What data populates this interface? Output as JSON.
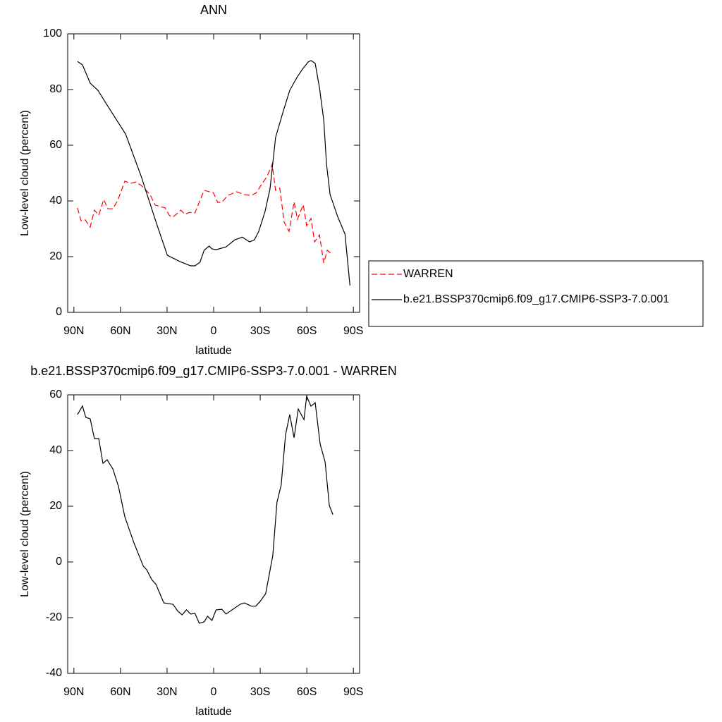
{
  "chart_data": [
    {
      "type": "line",
      "title": "ANN",
      "xlabel": "latitude",
      "ylabel": "Low-level cloud (percent)",
      "xlim": [
        94,
        -94
      ],
      "ylim": [
        0,
        100
      ],
      "xticks": [
        {
          "value": 90,
          "label": "90N"
        },
        {
          "value": 60,
          "label": "60N"
        },
        {
          "value": 30,
          "label": "30N"
        },
        0,
        {
          "value": -30,
          "label": "30S"
        },
        {
          "value": -60,
          "label": "60S"
        },
        {
          "value": -90,
          "label": "90S"
        }
      ],
      "yticks": [
        0,
        20,
        40,
        60,
        80,
        100
      ],
      "legend": "right",
      "series": [
        {
          "name": "WARREN",
          "color": "#ff0000",
          "line_style": "dashed",
          "x": [
            87.7,
            85.4,
            82.7,
            79.5,
            76.8,
            74.0,
            70.8,
            68.1,
            64.9,
            61.7,
            57.2,
            53.5,
            50.3,
            46.7,
            41.2,
            37.6,
            31.2,
            28.4,
            25.7,
            21.2,
            18.4,
            15.7,
            12.0,
            8.4,
            6.1,
            2.9,
            0.2,
            -2.6,
            -5.3,
            -9.0,
            -14.9,
            -19.4,
            -24.0,
            -27.2,
            -30.8,
            -34.5,
            -37.7,
            -39.9,
            -42.6,
            -45.4,
            -48.6,
            -51.8,
            -54.0,
            -57.7,
            -59.9,
            -62.7,
            -65.0,
            -68.2,
            -70.9,
            -73.2,
            -76.4
          ],
          "values": [
            37.5,
            32.9,
            33.2,
            30.6,
            36.7,
            34.9,
            40.5,
            37.2,
            37.2,
            40.3,
            47.1,
            46.3,
            46.8,
            45.6,
            42.5,
            38.5,
            37.5,
            34.7,
            34.4,
            36.7,
            35.2,
            35.9,
            35.7,
            40.8,
            43.8,
            43.3,
            43.0,
            39.5,
            39.5,
            42.0,
            43.3,
            42.3,
            42.0,
            42.8,
            45.8,
            48.9,
            53.2,
            43.8,
            44.6,
            32.4,
            29.1,
            39.7,
            33.4,
            38.7,
            31.1,
            33.7,
            25.3,
            27.8,
            17.7,
            22.3,
            20.8
          ]
        },
        {
          "name": "b.e21.BSSP370cmip6.f09_g17.CMIP6-SSP3-7.0.001",
          "color": "#000000",
          "line_style": "solid",
          "x": [
            87.7,
            84.5,
            79.5,
            74.5,
            69.5,
            56.7,
            46.7,
            36.6,
            29.8,
            21.6,
            14.8,
            12.0,
            8.8,
            6.1,
            2.9,
            1.1,
            -1.6,
            -8.0,
            -13.5,
            -18.5,
            -23.1,
            -26.2,
            -29.0,
            -33.1,
            -36.3,
            -39.9,
            -44.5,
            -49.0,
            -53.6,
            -57.2,
            -60.9,
            -62.7,
            -65.4,
            -68.2,
            -70.9,
            -72.7,
            -75.0,
            -80.0,
            -84.6,
            -87.8
          ],
          "values": [
            90.1,
            88.9,
            82.3,
            79.7,
            75.2,
            64.0,
            48.9,
            31.6,
            20.5,
            18.2,
            16.7,
            16.7,
            18.0,
            22.3,
            23.8,
            22.8,
            22.5,
            23.5,
            26.0,
            27.0,
            25.3,
            26.0,
            29.0,
            36.2,
            44.3,
            62.8,
            71.6,
            79.7,
            84.3,
            87.3,
            89.9,
            90.4,
            89.4,
            80.5,
            69.1,
            53.2,
            42.3,
            34.2,
            28.1,
            9.6
          ]
        }
      ]
    },
    {
      "type": "line",
      "title": "b.e21.BSSP370cmip6.f09_g17.CMIP6-SSP3-7.0.001 - WARREN",
      "xlabel": "latitude",
      "ylabel": "Low-level cloud (percent)",
      "xlim": [
        94,
        -94
      ],
      "ylim": [
        -40,
        60
      ],
      "xticks": [
        {
          "value": 90,
          "label": "90N"
        },
        {
          "value": 60,
          "label": "60N"
        },
        {
          "value": 30,
          "label": "30N"
        },
        0,
        {
          "value": -30,
          "label": "30S"
        },
        {
          "value": -60,
          "label": "60S"
        },
        {
          "value": -90,
          "label": "90S"
        }
      ],
      "yticks": [
        -40,
        -20,
        0,
        20,
        40,
        60
      ],
      "color": "#000000",
      "x": [
        87.7,
        84.5,
        82.3,
        79.5,
        76.8,
        74.0,
        71.3,
        68.6,
        64.9,
        61.3,
        57.2,
        51.3,
        45.3,
        43.1,
        39.9,
        37.1,
        32.1,
        26.2,
        23.0,
        20.3,
        17.5,
        14.8,
        12.0,
        9.3,
        6.1,
        3.9,
        1.1,
        -1.6,
        -5.3,
        -8.0,
        -17.1,
        -19.8,
        -24.4,
        -27.1,
        -29.9,
        -33.5,
        -38.1,
        -40.8,
        -43.5,
        -46.3,
        -49.0,
        -51.8,
        -54.5,
        -58.2,
        -59.9,
        -62.7,
        -65.4,
        -68.6,
        -71.8,
        -74.5,
        -76.8
      ],
      "values": [
        52.9,
        56.0,
        51.9,
        51.4,
        44.3,
        44.3,
        35.4,
        36.7,
        33.4,
        27.1,
        16.2,
        6.8,
        -1.5,
        -2.8,
        -6.3,
        -8.1,
        -14.7,
        -15.2,
        -17.7,
        -19.0,
        -17.2,
        -18.7,
        -18.5,
        -22.0,
        -21.5,
        -19.5,
        -21.0,
        -17.2,
        -17.0,
        -18.7,
        -15.2,
        -14.7,
        -15.9,
        -15.9,
        -14.2,
        -11.4,
        2.3,
        21.5,
        27.6,
        45.6,
        52.9,
        44.6,
        54.9,
        51.1,
        59.5,
        55.9,
        57.2,
        42.3,
        35.9,
        20.3,
        17.0
      ]
    }
  ]
}
